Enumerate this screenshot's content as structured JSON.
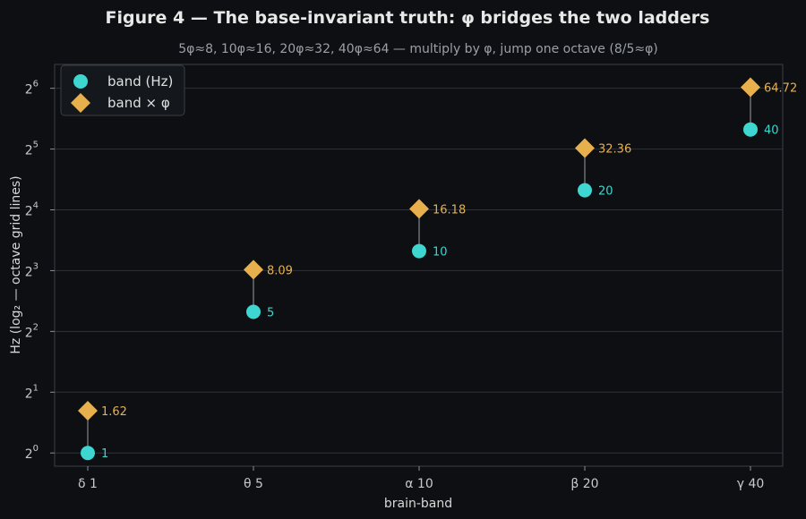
{
  "chart_data": {
    "type": "scatter",
    "title": "Figure 4 — The base-invariant truth: φ bridges the two ladders",
    "subtitle": "5φ≈8, 10φ≈16, 20φ≈32, 40φ≈64 — multiply by φ, jump one octave (8/5≈φ)",
    "xlabel": "brain-band",
    "ylabel": "Hz  (log₂ — octave grid lines)",
    "y_scale": "log2",
    "ylim": [
      0.86,
      84
    ],
    "grid": "y-major",
    "legend_position": "top-left",
    "categories": [
      "δ 1",
      "θ 5",
      "α 10",
      "β 20",
      "γ 40"
    ],
    "y_tick_exponents": [
      0,
      1,
      2,
      3,
      4,
      5,
      6
    ],
    "y_tick_base": "2",
    "series": [
      {
        "name": "band (Hz)",
        "marker": "circle",
        "color": "#3dd6d0",
        "values": [
          1,
          5,
          10,
          20,
          40
        ],
        "labels": [
          "1",
          "5",
          "10",
          "20",
          "40"
        ]
      },
      {
        "name": "band × φ",
        "marker": "diamond",
        "color": "#e8b04c",
        "values": [
          1.62,
          8.09,
          16.18,
          32.36,
          64.72
        ],
        "labels": [
          "1.62",
          "8.09",
          "16.18",
          "32.36",
          "64.72"
        ]
      }
    ],
    "colors": {
      "background": "#0d0f12",
      "plot_background": "#0d0f12",
      "grid": "#2e3338",
      "connector": "#8a9096",
      "frame": "#3a3f44"
    }
  }
}
